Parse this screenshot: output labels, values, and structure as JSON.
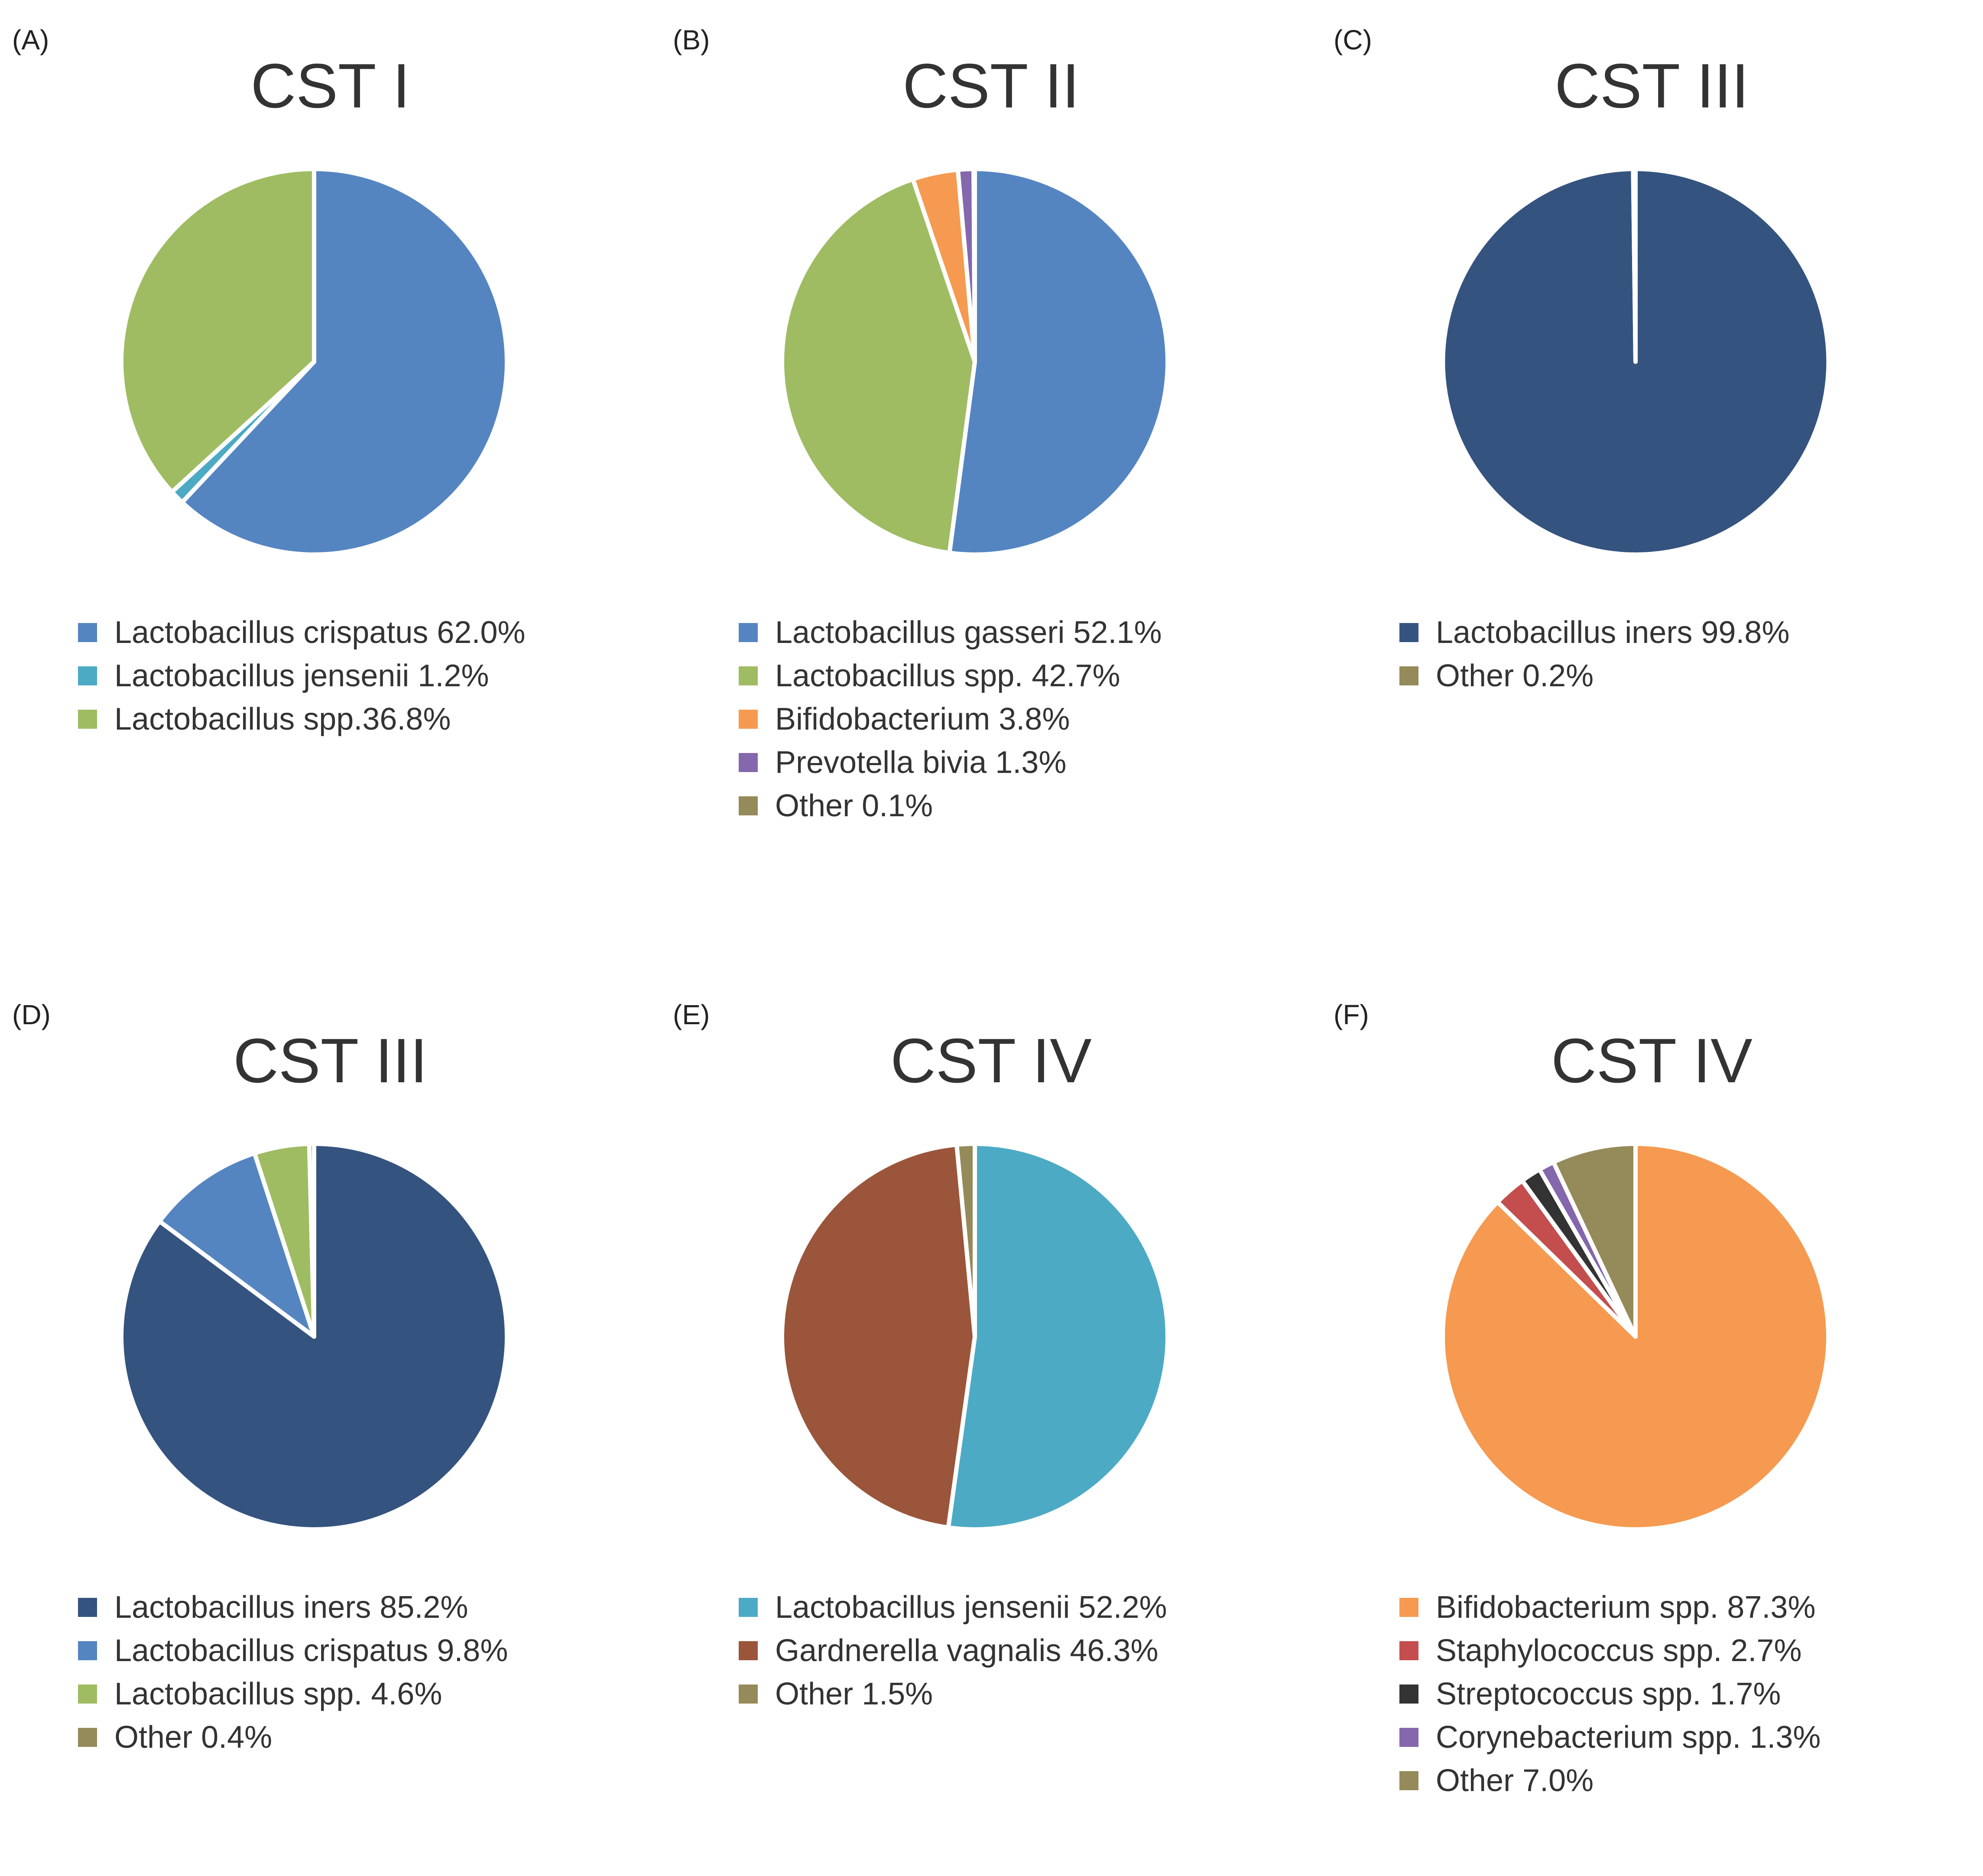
{
  "chart_data": [
    {
      "type": "pie",
      "panel_label": "(A)",
      "title": "CST I",
      "series": [
        {
          "name": "Lactobacillus crispatus",
          "value": 62.0,
          "legend": "Lactobacillus crispatus 62.0%",
          "color": "#5585C1"
        },
        {
          "name": "Lactobacillus jensenii",
          "value": 1.2,
          "legend": "Lactobacillus jensenii 1.2%",
          "color": "#4DAAC5"
        },
        {
          "name": "Lactobacillus spp.",
          "value": 36.8,
          "legend": "Lactobacillus spp.36.8%",
          "color": "#9FBC62"
        }
      ]
    },
    {
      "type": "pie",
      "panel_label": "(B)",
      "title": "CST II",
      "series": [
        {
          "name": "Lactobacillus gasseri",
          "value": 52.1,
          "legend": "Lactobacillus gasseri 52.1%",
          "color": "#5585C1"
        },
        {
          "name": "Lactobacillus spp.",
          "value": 42.7,
          "legend": "Lactobacillus spp. 42.7%",
          "color": "#9FBC62"
        },
        {
          "name": "Bifidobacterium",
          "value": 3.8,
          "legend": "Bifidobacterium 3.8%",
          "color": "#F59A50"
        },
        {
          "name": "Prevotella bivia",
          "value": 1.3,
          "legend": "Prevotella bivia 1.3%",
          "color": "#8467AC"
        },
        {
          "name": "Other",
          "value": 0.1,
          "legend": "Other 0.1%",
          "color": "#958A59"
        }
      ]
    },
    {
      "type": "pie",
      "panel_label": "(C)",
      "title": "CST III",
      "series": [
        {
          "name": "Lactobacillus iners",
          "value": 99.8,
          "legend": "Lactobacillus iners 99.8%",
          "color": "#35537F"
        },
        {
          "name": "Other",
          "value": 0.2,
          "legend": "Other 0.2%",
          "color": "#958A59"
        }
      ]
    },
    {
      "type": "pie",
      "panel_label": "(D)",
      "title": "CST III",
      "series": [
        {
          "name": "Lactobacillus iners",
          "value": 85.2,
          "legend": "Lactobacillus iners 85.2%",
          "color": "#35537F"
        },
        {
          "name": "Lactobacillus crispatus",
          "value": 9.8,
          "legend": "Lactobacillus crispatus 9.8%",
          "color": "#5585C1"
        },
        {
          "name": "Lactobacillus spp.",
          "value": 4.6,
          "legend": "Lactobacillus spp. 4.6%",
          "color": "#9FBC62"
        },
        {
          "name": "Other",
          "value": 0.4,
          "legend": "Other 0.4%",
          "color": "#958A59"
        }
      ]
    },
    {
      "type": "pie",
      "panel_label": "(E)",
      "title": "CST IV",
      "series": [
        {
          "name": "Lactobacillus jensenii",
          "value": 52.2,
          "legend": "Lactobacillus jensenii 52.2%",
          "color": "#4DAAC5"
        },
        {
          "name": "Gardnerella vagnalis",
          "value": 46.3,
          "legend": "Gardnerella vagnalis 46.3%",
          "color": "#9A553A"
        },
        {
          "name": "Other",
          "value": 1.5,
          "legend": "Other 1.5%",
          "color": "#958A59"
        }
      ]
    },
    {
      "type": "pie",
      "panel_label": "(F)",
      "title": "CST IV",
      "series": [
        {
          "name": "Bifidobacterium spp.",
          "value": 87.3,
          "legend": "Bifidobacterium spp. 87.3%",
          "color": "#F59A50"
        },
        {
          "name": "Staphylococcus spp.",
          "value": 2.7,
          "legend": "Staphylococcus spp. 2.7%",
          "color": "#C44E4E"
        },
        {
          "name": "Streptococcus spp.",
          "value": 1.7,
          "legend": "Streptococcus spp. 1.7%",
          "color": "#333333"
        },
        {
          "name": "Corynebacterium spp.",
          "value": 1.3,
          "legend": "Corynebacterium spp. 1.3%",
          "color": "#8467AC"
        },
        {
          "name": "Other",
          "value": 7.0,
          "legend": "Other 7.0%",
          "color": "#958A59"
        }
      ]
    }
  ]
}
